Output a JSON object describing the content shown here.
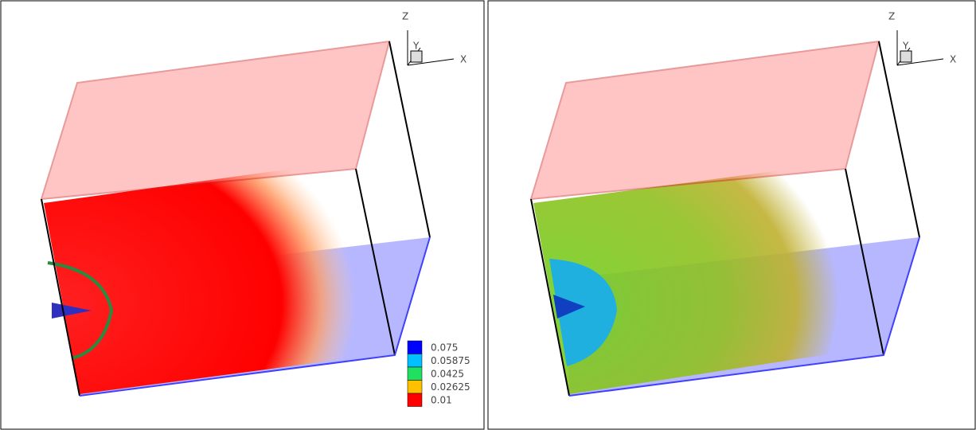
{
  "panels": [
    {
      "axes": {
        "z": "Z",
        "y": "Y",
        "x": "X"
      }
    },
    {
      "axes": {
        "z": "Z",
        "y": "Y",
        "x": "X"
      }
    }
  ],
  "legend": {
    "entries": [
      {
        "value": 0.075,
        "color": "#0000ff"
      },
      {
        "value": 0.05875,
        "color": "#00c0ff"
      },
      {
        "value": 0.0425,
        "color": "#20e060"
      },
      {
        "value": 0.02625,
        "color": "#ffc000"
      },
      {
        "value": 0.01,
        "color": "#ff0000"
      }
    ]
  }
}
